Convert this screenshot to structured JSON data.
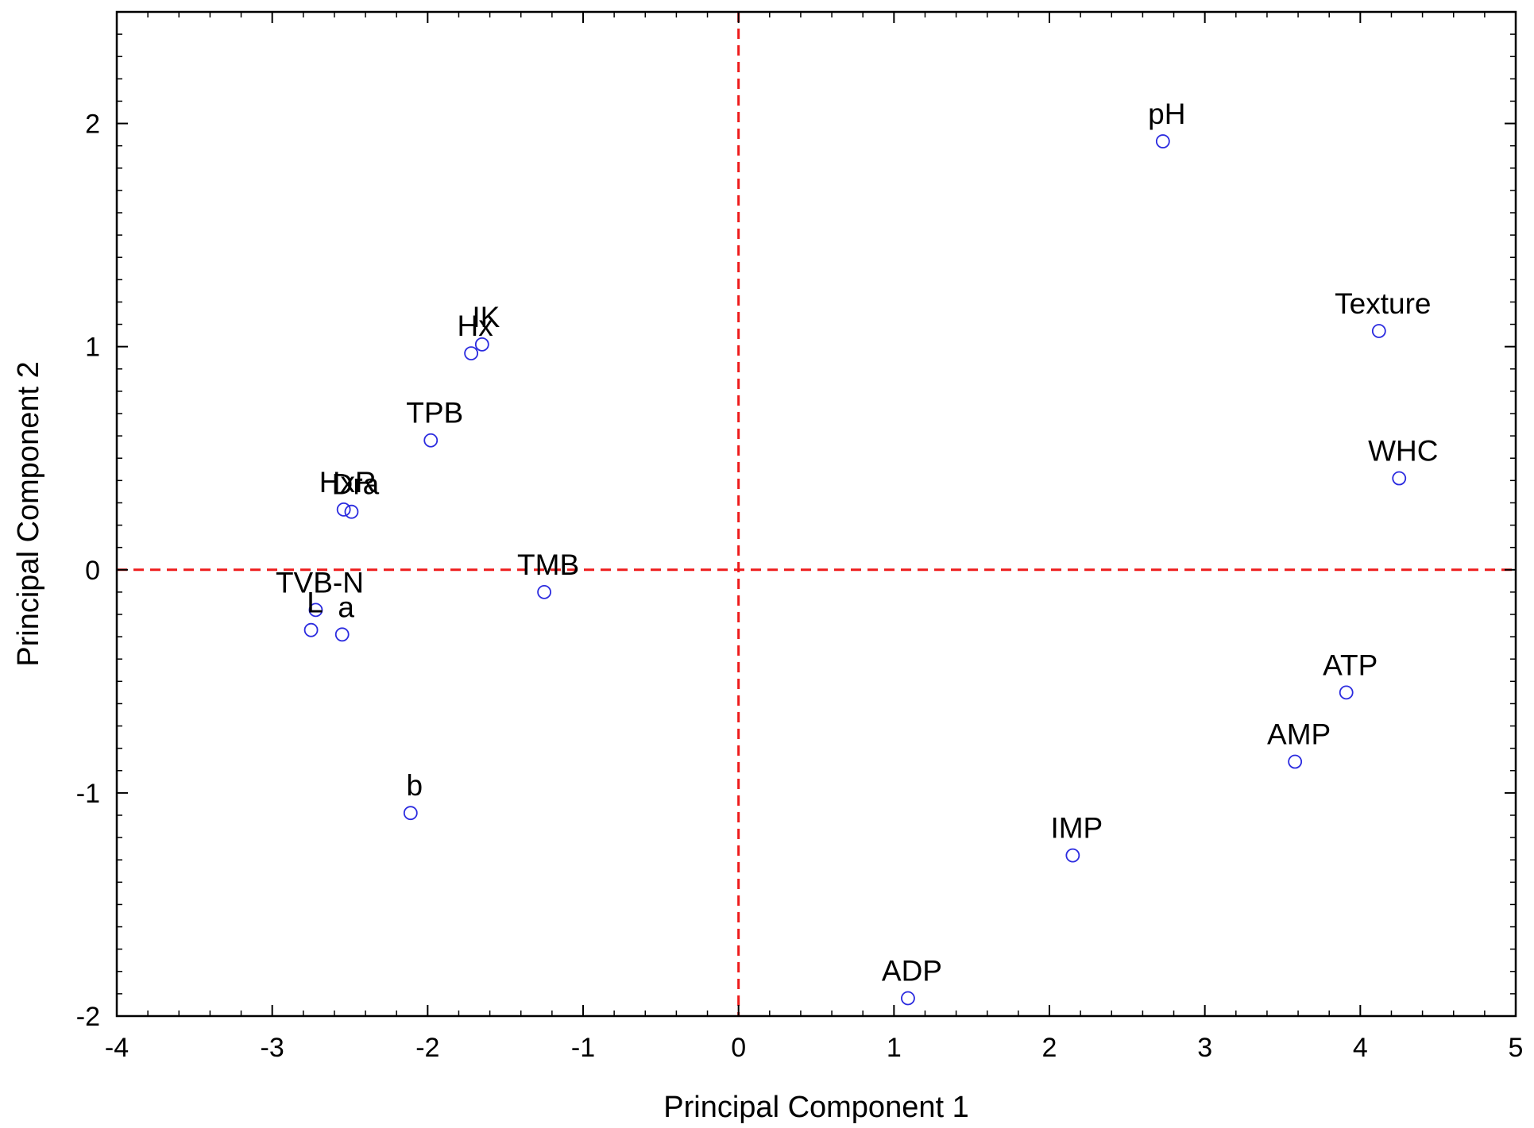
{
  "chart_data": {
    "type": "scatter",
    "xlabel": "Principal Component 1",
    "ylabel": "Principal Component 2",
    "xlim": [
      -4,
      5
    ],
    "ylim": [
      -2,
      2.5
    ],
    "x_ticks": [
      -4,
      -3,
      -2,
      -1,
      0,
      1,
      2,
      3,
      4,
      5
    ],
    "y_ticks": [
      -2,
      -1,
      0,
      1,
      2
    ],
    "x_tick_labels": [
      "-4",
      "-3",
      "-2",
      "-1",
      "0",
      "1",
      "2",
      "3",
      "4",
      "5"
    ],
    "y_tick_labels": [
      "-2",
      "-1",
      "0",
      "1",
      "2"
    ],
    "reference_lines": [
      {
        "axis": "x",
        "value": 0,
        "style": "dashed",
        "color": "#ee1c1c"
      },
      {
        "axis": "y",
        "value": 0,
        "style": "dashed",
        "color": "#ee1c1c"
      }
    ],
    "marker_color": "#2b2bdf",
    "grid": false,
    "points": [
      {
        "label": "pH",
        "x": 2.73,
        "y": 1.92
      },
      {
        "label": "Texture",
        "x": 4.12,
        "y": 1.07
      },
      {
        "label": "WHC",
        "x": 4.25,
        "y": 0.41
      },
      {
        "label": "IK",
        "x": -1.65,
        "y": 1.01
      },
      {
        "label": "Hx",
        "x": -1.72,
        "y": 0.97
      },
      {
        "label": "TPB",
        "x": -1.98,
        "y": 0.58
      },
      {
        "label": "HxR",
        "x": -2.54,
        "y": 0.27
      },
      {
        "label": "Dra",
        "x": -2.49,
        "y": 0.26
      },
      {
        "label": "TMB",
        "x": -1.25,
        "y": -0.1
      },
      {
        "label": "TVB-N",
        "x": -2.72,
        "y": -0.18
      },
      {
        "label": "L",
        "x": -2.75,
        "y": -0.27
      },
      {
        "label": "a",
        "x": -2.55,
        "y": -0.29
      },
      {
        "label": "b",
        "x": -2.11,
        "y": -1.09
      },
      {
        "label": "ATP",
        "x": 3.91,
        "y": -0.55
      },
      {
        "label": "AMP",
        "x": 3.58,
        "y": -0.86
      },
      {
        "label": "IMP",
        "x": 2.15,
        "y": -1.28
      },
      {
        "label": "ADP",
        "x": 1.09,
        "y": -1.92
      }
    ]
  }
}
